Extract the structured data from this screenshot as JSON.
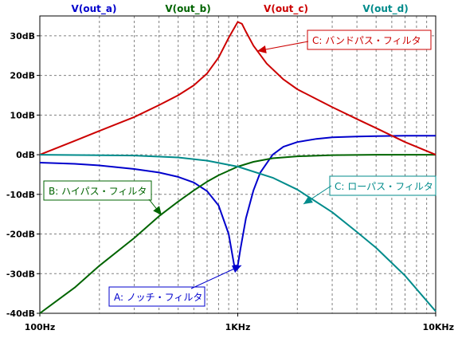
{
  "chart_data": {
    "type": "line",
    "x_scale": "log",
    "xlim": [
      100,
      10000
    ],
    "ylim": [
      -40,
      35
    ],
    "grid": true,
    "x_ticks": [
      {
        "value": 100,
        "label": "100Hz"
      },
      {
        "value": 1000,
        "label": "1KHz"
      },
      {
        "value": 10000,
        "label": "10KHz"
      }
    ],
    "y_ticks": [
      {
        "value": 30,
        "label": "30dB"
      },
      {
        "value": 20,
        "label": "20dB"
      },
      {
        "value": 10,
        "label": "10dB"
      },
      {
        "value": 0,
        "label": "0dB"
      },
      {
        "value": -10,
        "label": "-10dB"
      },
      {
        "value": -20,
        "label": "-20dB"
      },
      {
        "value": -30,
        "label": "-30dB"
      },
      {
        "value": -40,
        "label": "-40dB"
      }
    ],
    "series": [
      {
        "name": "V(out_a)",
        "color": "#0000cc",
        "annotation": "A: ノッチ・フィルタ",
        "points": [
          [
            100,
            -2.0
          ],
          [
            150,
            -2.3
          ],
          [
            200,
            -2.7
          ],
          [
            300,
            -3.6
          ],
          [
            400,
            -4.5
          ],
          [
            500,
            -5.6
          ],
          [
            600,
            -7.0
          ],
          [
            700,
            -9.2
          ],
          [
            800,
            -12.8
          ],
          [
            900,
            -20.0
          ],
          [
            960,
            -28.0
          ],
          [
            1000,
            -28.0
          ],
          [
            1030,
            -24.0
          ],
          [
            1100,
            -16.0
          ],
          [
            1200,
            -9.0
          ],
          [
            1300,
            -4.5
          ],
          [
            1500,
            0.0
          ],
          [
            1700,
            2.0
          ],
          [
            2000,
            3.2
          ],
          [
            2500,
            4.0
          ],
          [
            3000,
            4.4
          ],
          [
            4000,
            4.6
          ],
          [
            5000,
            4.7
          ],
          [
            7000,
            4.8
          ],
          [
            10000,
            4.8
          ]
        ]
      },
      {
        "name": "V(out_b)",
        "color": "#006400",
        "annotation": "B: ハイパス・フィルタ",
        "points": [
          [
            100,
            -40.0
          ],
          [
            150,
            -33.5
          ],
          [
            200,
            -28.0
          ],
          [
            300,
            -21.0
          ],
          [
            400,
            -15.5
          ],
          [
            500,
            -11.8
          ],
          [
            600,
            -9.0
          ],
          [
            700,
            -6.8
          ],
          [
            800,
            -5.2
          ],
          [
            1000,
            -3.0
          ],
          [
            1200,
            -1.8
          ],
          [
            1500,
            -0.9
          ],
          [
            2000,
            -0.4
          ],
          [
            3000,
            -0.1
          ],
          [
            5000,
            0.0
          ],
          [
            10000,
            0.0
          ]
        ]
      },
      {
        "name": "V(out_c)",
        "color": "#cc0000",
        "annotation": "C: バンドパス・フィルタ",
        "points": [
          [
            100,
            0.0
          ],
          [
            150,
            3.5
          ],
          [
            200,
            6.0
          ],
          [
            300,
            9.5
          ],
          [
            400,
            12.5
          ],
          [
            500,
            15.0
          ],
          [
            600,
            17.5
          ],
          [
            700,
            20.5
          ],
          [
            800,
            24.5
          ],
          [
            900,
            29.5
          ],
          [
            1000,
            33.5
          ],
          [
            1050,
            33.0
          ],
          [
            1100,
            31.0
          ],
          [
            1200,
            27.5
          ],
          [
            1400,
            23.0
          ],
          [
            1700,
            19.0
          ],
          [
            2000,
            16.5
          ],
          [
            3000,
            12.0
          ],
          [
            4000,
            9.0
          ],
          [
            5000,
            6.7
          ],
          [
            7000,
            3.2
          ],
          [
            10000,
            0.0
          ]
        ]
      },
      {
        "name": "V(out_d)",
        "color": "#008b8b",
        "annotation": "C: ローパス・フィルタ",
        "points": [
          [
            100,
            0.0
          ],
          [
            300,
            -0.2
          ],
          [
            500,
            -0.7
          ],
          [
            700,
            -1.5
          ],
          [
            1000,
            -3.0
          ],
          [
            1500,
            -5.8
          ],
          [
            2000,
            -8.8
          ],
          [
            3000,
            -14.5
          ],
          [
            4000,
            -19.5
          ],
          [
            5000,
            -23.5
          ],
          [
            7000,
            -30.5
          ],
          [
            10000,
            -39.5
          ]
        ]
      }
    ]
  }
}
